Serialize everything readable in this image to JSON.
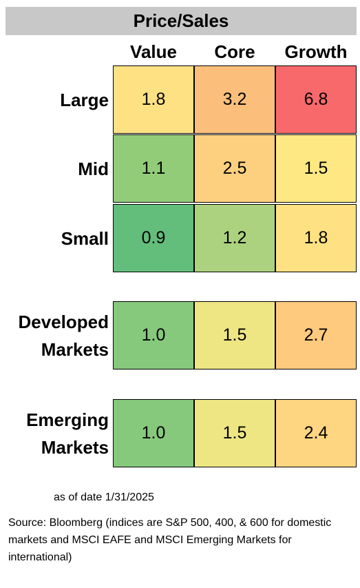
{
  "chart_data": {
    "type": "heatmap",
    "title": "Price/Sales",
    "columns": [
      "Value",
      "Core",
      "Growth"
    ],
    "rows": [
      {
        "label": "Large",
        "values": [
          1.8,
          3.2,
          6.8
        ],
        "display": [
          "1.8",
          "3.2",
          "6.8"
        ],
        "colors": [
          "#fde182",
          "#fbbf7b",
          "#f8696b"
        ]
      },
      {
        "label": "Mid",
        "values": [
          1.1,
          2.5,
          1.5
        ],
        "display": [
          "1.1",
          "2.5",
          "1.5"
        ],
        "colors": [
          "#93cc79",
          "#fcd07f",
          "#fee883"
        ]
      },
      {
        "label": "Small",
        "values": [
          0.9,
          1.2,
          1.8
        ],
        "display": [
          "0.9",
          "1.2",
          "1.8"
        ],
        "colors": [
          "#63be7b",
          "#add27f",
          "#fee182"
        ]
      },
      {
        "label": "Developed Markets",
        "values": [
          1.0,
          1.5,
          2.7
        ],
        "display": [
          "1.0",
          "1.5",
          "2.7"
        ],
        "colors": [
          "#86c97d",
          "#eee683",
          "#fdca7e"
        ]
      },
      {
        "label": "Emerging Markets",
        "values": [
          1.0,
          1.5,
          2.4
        ],
        "display": [
          "1.0",
          "1.5",
          "2.4"
        ],
        "colors": [
          "#86c97d",
          "#eee683",
          "#fed580"
        ]
      }
    ]
  },
  "note": "as of date  1/31/2025",
  "source": "Source: Bloomberg (indices are S&P 500, 400, & 600 for domestic markets and MSCI EAFE and MSCI Emerging Markets for international)"
}
